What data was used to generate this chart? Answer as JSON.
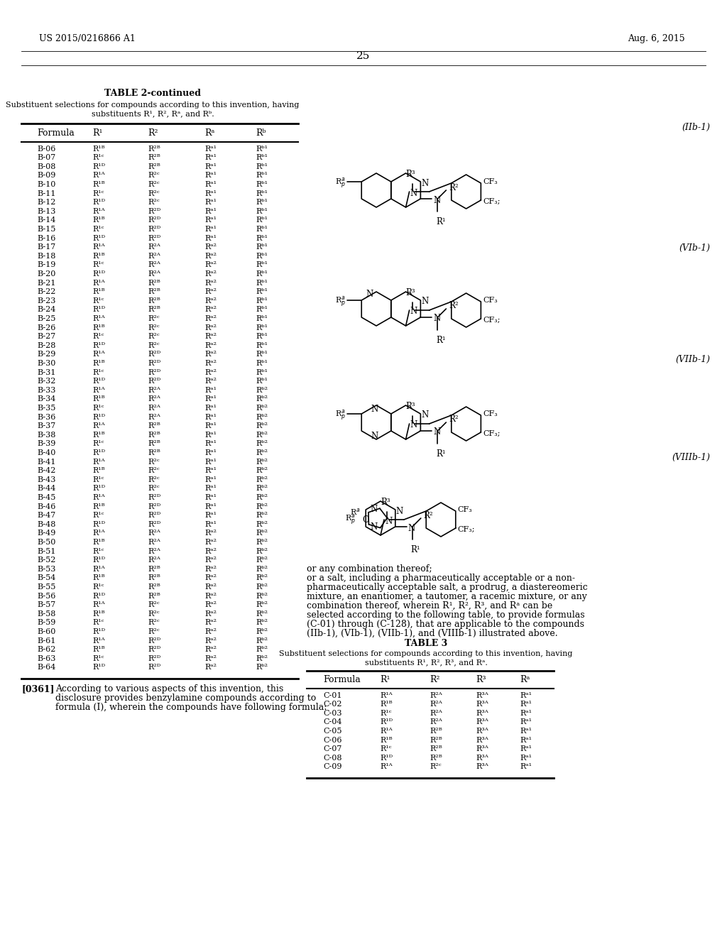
{
  "header_left": "US 2015/0216866 A1",
  "header_right": "Aug. 6, 2015",
  "page_number": "25",
  "table_title": "TABLE 2-continued",
  "table_subtitle1": "Substituent selections for compounds according to this invention, having",
  "table_subtitle2": "substituents R¹, R², Rᵃ, and Rᵇ.",
  "col_headers": [
    "Formula",
    "R¹",
    "R²",
    "Rᵃ",
    "Rᵇ"
  ],
  "rows": [
    [
      "B-06",
      "R¹ᴮ",
      "R²ᴮ",
      "Rᵃ¹",
      "Rᵇ¹"
    ],
    [
      "B-07",
      "R¹ᶜ",
      "R²ᴮ",
      "Rᵃ¹",
      "Rᵇ¹"
    ],
    [
      "B-08",
      "R¹ᴰ",
      "R²ᴮ",
      "Rᵃ¹",
      "Rᵇ¹"
    ],
    [
      "B-09",
      "R¹ᴬ",
      "R²ᶜ",
      "Rᵃ¹",
      "Rᵇ¹"
    ],
    [
      "B-10",
      "R¹ᴮ",
      "R²ᶜ",
      "Rᵃ¹",
      "Rᵇ¹"
    ],
    [
      "B-11",
      "R¹ᶜ",
      "R²ᶜ",
      "Rᵃ¹",
      "Rᵇ¹"
    ],
    [
      "B-12",
      "R¹ᴰ",
      "R²ᶜ",
      "Rᵃ¹",
      "Rᵇ¹"
    ],
    [
      "B-13",
      "R¹ᴬ",
      "R²ᴰ",
      "Rᵃ¹",
      "Rᵇ¹"
    ],
    [
      "B-14",
      "R¹ᴮ",
      "R²ᴰ",
      "Rᵃ¹",
      "Rᵇ¹"
    ],
    [
      "B-15",
      "R¹ᶜ",
      "R²ᴰ",
      "Rᵃ¹",
      "Rᵇ¹"
    ],
    [
      "B-16",
      "R¹ᴰ",
      "R²ᴰ",
      "Rᵃ¹",
      "Rᵇ¹"
    ],
    [
      "B-17",
      "R¹ᴬ",
      "R²ᴬ",
      "Rᵃ²",
      "Rᵇ¹"
    ],
    [
      "B-18",
      "R¹ᴮ",
      "R²ᴬ",
      "Rᵃ²",
      "Rᵇ¹"
    ],
    [
      "B-19",
      "R¹ᶜ",
      "R²ᴬ",
      "Rᵃ²",
      "Rᵇ¹"
    ],
    [
      "B-20",
      "R¹ᴰ",
      "R²ᴬ",
      "Rᵃ²",
      "Rᵇ¹"
    ],
    [
      "B-21",
      "R¹ᴬ",
      "R²ᴮ",
      "Rᵃ²",
      "Rᵇ¹"
    ],
    [
      "B-22",
      "R¹ᴮ",
      "R²ᴮ",
      "Rᵃ²",
      "Rᵇ¹"
    ],
    [
      "B-23",
      "R¹ᶜ",
      "R²ᴮ",
      "Rᵃ²",
      "Rᵇ¹"
    ],
    [
      "B-24",
      "R¹ᴰ",
      "R²ᴮ",
      "Rᵃ²",
      "Rᵇ¹"
    ],
    [
      "B-25",
      "R¹ᴬ",
      "R²ᶜ",
      "Rᵃ²",
      "Rᵇ¹"
    ],
    [
      "B-26",
      "R¹ᴮ",
      "R²ᶜ",
      "Rᵃ²",
      "Rᵇ¹"
    ],
    [
      "B-27",
      "R¹ᶜ",
      "R²ᶜ",
      "Rᵃ²",
      "Rᵇ¹"
    ],
    [
      "B-28",
      "R¹ᴰ",
      "R²ᶜ",
      "Rᵃ²",
      "Rᵇ¹"
    ],
    [
      "B-29",
      "R¹ᴬ",
      "R²ᴰ",
      "Rᵃ²",
      "Rᵇ¹"
    ],
    [
      "B-30",
      "R¹ᴮ",
      "R²ᴰ",
      "Rᵃ²",
      "Rᵇ¹"
    ],
    [
      "B-31",
      "R¹ᶜ",
      "R²ᴰ",
      "Rᵃ²",
      "Rᵇ¹"
    ],
    [
      "B-32",
      "R¹ᴰ",
      "R²ᴰ",
      "Rᵃ²",
      "Rᵇ¹"
    ],
    [
      "B-33",
      "R¹ᴬ",
      "R²ᴬ",
      "Rᵃ¹",
      "Rᵇ²"
    ],
    [
      "B-34",
      "R¹ᴮ",
      "R²ᴬ",
      "Rᵃ¹",
      "Rᵇ²"
    ],
    [
      "B-35",
      "R¹ᶜ",
      "R²ᴬ",
      "Rᵃ¹",
      "Rᵇ²"
    ],
    [
      "B-36",
      "R¹ᴰ",
      "R²ᴬ",
      "Rᵃ¹",
      "Rᵇ²"
    ],
    [
      "B-37",
      "R¹ᴬ",
      "R²ᴮ",
      "Rᵃ¹",
      "Rᵇ²"
    ],
    [
      "B-38",
      "R¹ᴮ",
      "R²ᴮ",
      "Rᵃ¹",
      "Rᵇ²"
    ],
    [
      "B-39",
      "R¹ᶜ",
      "R²ᴮ",
      "Rᵃ¹",
      "Rᵇ²"
    ],
    [
      "B-40",
      "R¹ᴰ",
      "R²ᴮ",
      "Rᵃ¹",
      "Rᵇ²"
    ],
    [
      "B-41",
      "R¹ᴬ",
      "R²ᶜ",
      "Rᵃ¹",
      "Rᵇ²"
    ],
    [
      "B-42",
      "R¹ᴮ",
      "R²ᶜ",
      "Rᵃ¹",
      "Rᵇ²"
    ],
    [
      "B-43",
      "R¹ᶜ",
      "R²ᶜ",
      "Rᵃ¹",
      "Rᵇ²"
    ],
    [
      "B-44",
      "R¹ᴰ",
      "R²ᶜ",
      "Rᵃ¹",
      "Rᵇ²"
    ],
    [
      "B-45",
      "R¹ᴬ",
      "R²ᴰ",
      "Rᵃ¹",
      "Rᵇ²"
    ],
    [
      "B-46",
      "R¹ᴮ",
      "R²ᴰ",
      "Rᵃ¹",
      "Rᵇ²"
    ],
    [
      "B-47",
      "R¹ᶜ",
      "R²ᴰ",
      "Rᵃ¹",
      "Rᵇ²"
    ],
    [
      "B-48",
      "R¹ᴰ",
      "R²ᴰ",
      "Rᵃ¹",
      "Rᵇ²"
    ],
    [
      "B-49",
      "R¹ᴬ",
      "R²ᴬ",
      "Rᵃ²",
      "Rᵇ²"
    ],
    [
      "B-50",
      "R¹ᴮ",
      "R²ᴬ",
      "Rᵃ²",
      "Rᵇ²"
    ],
    [
      "B-51",
      "R¹ᶜ",
      "R²ᴬ",
      "Rᵃ²",
      "Rᵇ²"
    ],
    [
      "B-52",
      "R¹ᴰ",
      "R²ᴬ",
      "Rᵃ²",
      "Rᵇ²"
    ],
    [
      "B-53",
      "R¹ᴬ",
      "R²ᴮ",
      "Rᵃ²",
      "Rᵇ²"
    ],
    [
      "B-54",
      "R¹ᴮ",
      "R²ᴮ",
      "Rᵃ²",
      "Rᵇ²"
    ],
    [
      "B-55",
      "R¹ᶜ",
      "R²ᴮ",
      "Rᵃ²",
      "Rᵇ²"
    ],
    [
      "B-56",
      "R¹ᴰ",
      "R²ᴮ",
      "Rᵃ²",
      "Rᵇ²"
    ],
    [
      "B-57",
      "R¹ᴬ",
      "R²ᶜ",
      "Rᵃ²",
      "Rᵇ²"
    ],
    [
      "B-58",
      "R¹ᴮ",
      "R²ᶜ",
      "Rᵃ²",
      "Rᵇ²"
    ],
    [
      "B-59",
      "R¹ᶜ",
      "R²ᶜ",
      "Rᵃ²",
      "Rᵇ²"
    ],
    [
      "B-60",
      "R¹ᴰ",
      "R²ᶜ",
      "Rᵃ²",
      "Rᵇ²"
    ],
    [
      "B-61",
      "R¹ᴬ",
      "R²ᴰ",
      "Rᵃ²",
      "Rᵇ²"
    ],
    [
      "B-62",
      "R¹ᴮ",
      "R²ᴰ",
      "Rᵃ²",
      "Rᵇ²"
    ],
    [
      "B-63",
      "R¹ᶜ",
      "R²ᴰ",
      "Rᵃ²",
      "Rᵇ²"
    ],
    [
      "B-64",
      "R¹ᴰ",
      "R²ᴰ",
      "Rᵃ²",
      "Rᵇ²"
    ]
  ],
  "table3_title": "TABLE 3",
  "table3_subtitle1": "Substituent selections for compounds according to this invention, having",
  "table3_subtitle2": "substituents R¹, R², R³, and Rᵃ.",
  "table3_col_headers": [
    "Formula",
    "R¹",
    "R²",
    "R³",
    "Rᵃ"
  ],
  "table3_rows": [
    [
      "C-01",
      "R¹ᴬ",
      "R²ᴬ",
      "R³ᴬ",
      "Rᵃ¹"
    ],
    [
      "C-02",
      "R¹ᴮ",
      "R²ᴬ",
      "R³ᴬ",
      "Rᵃ¹"
    ],
    [
      "C-03",
      "R¹ᶜ",
      "R²ᴬ",
      "R³ᴬ",
      "Rᵃ¹"
    ],
    [
      "C-04",
      "R¹ᴰ",
      "R²ᴬ",
      "R³ᴬ",
      "Rᵃ¹"
    ],
    [
      "C-05",
      "R¹ᴬ",
      "R²ᴮ",
      "R³ᴬ",
      "Rᵃ¹"
    ],
    [
      "C-06",
      "R¹ᴮ",
      "R²ᴮ",
      "R³ᴬ",
      "Rᵃ¹"
    ],
    [
      "C-07",
      "R¹ᶜ",
      "R²ᴮ",
      "R³ᴬ",
      "Rᵃ¹"
    ],
    [
      "C-08",
      "R¹ᴰ",
      "R²ᴮ",
      "R³ᴬ",
      "Rᵃ¹"
    ],
    [
      "C-09",
      "R¹ᴬ",
      "R²ᶜ",
      "R³ᴬ",
      "Rᵃ¹"
    ]
  ],
  "paragraph_label": "[0361]",
  "paragraph_text1": "According to various aspects of this invention, this",
  "paragraph_text2": "disclosure provides benzylamine compounds according to",
  "paragraph_text3": "formula (I), wherein the compounds have following formula:",
  "right_para1": "or any combination thereof;",
  "right_para2": "or a salt, including a pharmaceutically acceptable or a non-",
  "right_para3": "pharmaceutically acceptable salt, a prodrug, a diastereomeric",
  "right_para4": "mixture, an enantiomer, a tautomer, a racemic mixture, or any",
  "right_para5": "combination thereof, wherein R¹, R², R³, and Rᵃ can be",
  "right_para6": "selected according to the following table, to provide formulas",
  "right_para7": "(C-01) through (C-128), that are applicable to the compounds",
  "right_para8": "(IIb-1), (VIb-1), (VIIb-1), and (VIIIb-1) illustrated above.",
  "bg_color": "#ffffff",
  "text_color": "#000000"
}
